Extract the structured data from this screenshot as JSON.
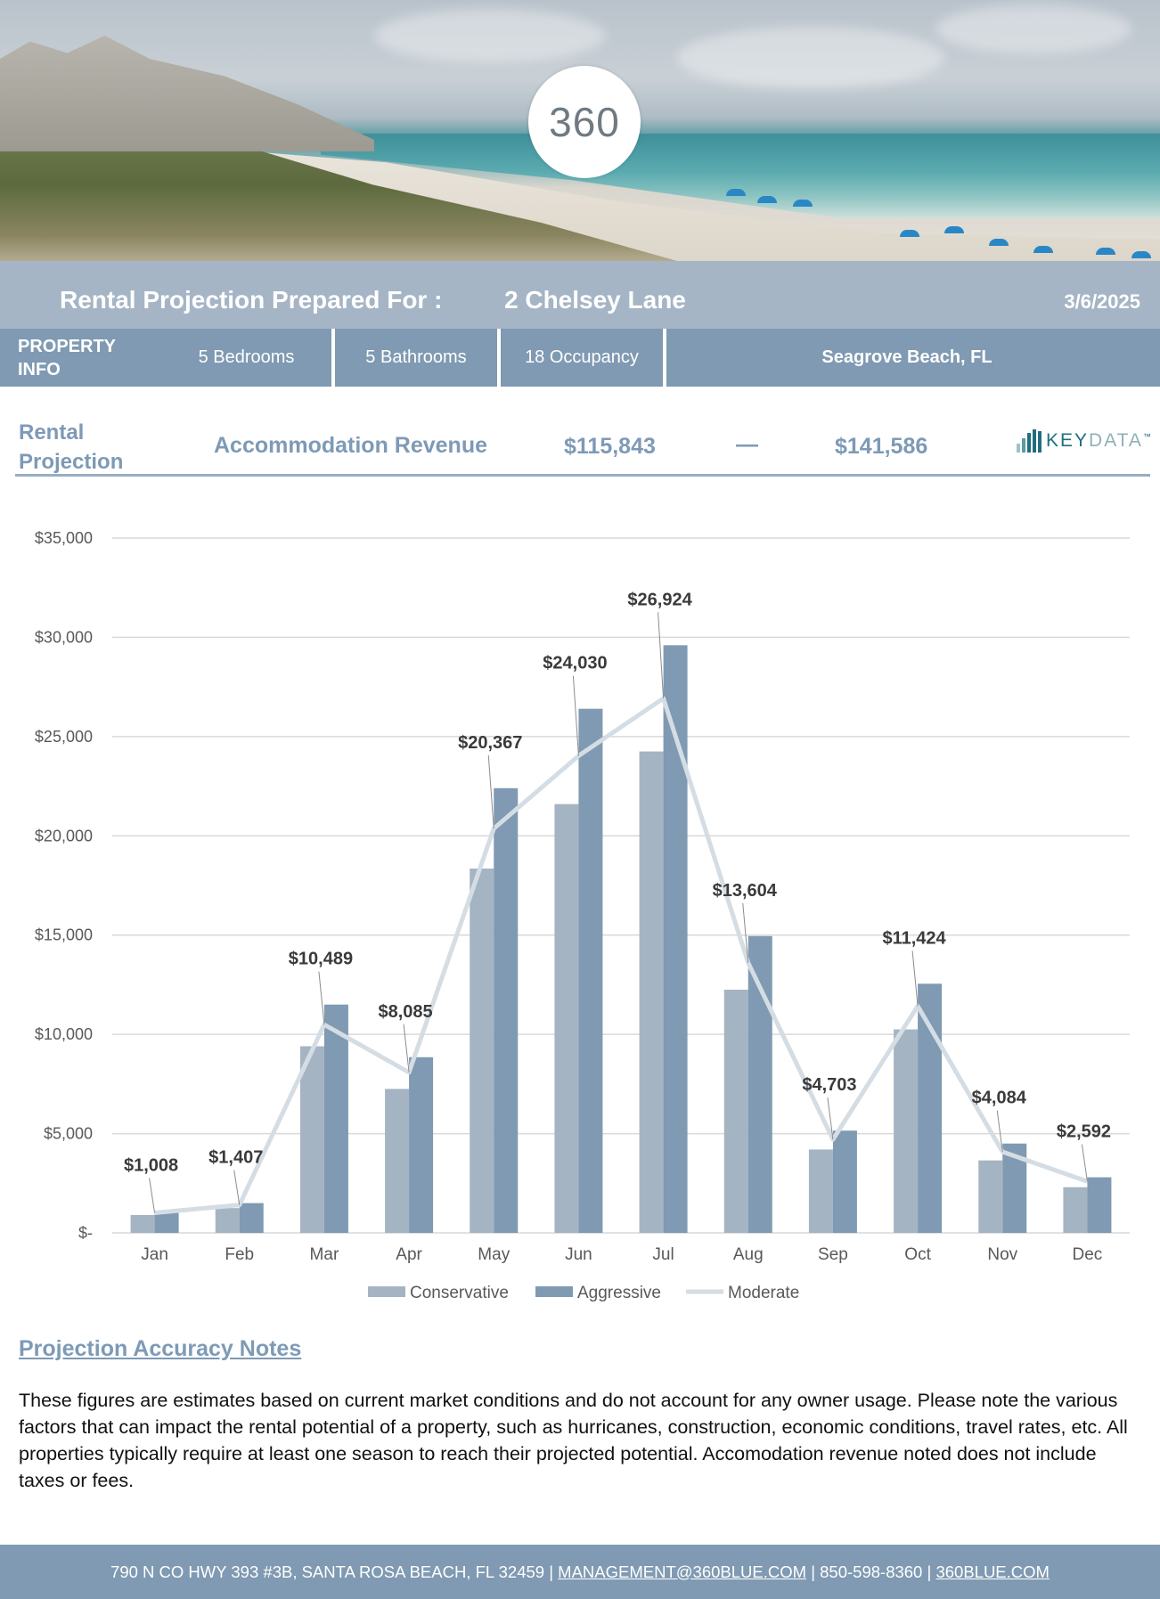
{
  "hero": {
    "logo_text": "360"
  },
  "header": {
    "title_prefix": "Rental Projection Prepared For :",
    "property_name": "2 Chelsey Lane",
    "date": "3/6/2025"
  },
  "property_info": {
    "label": "PROPERTY INFO",
    "bedrooms": "5 Bedrooms",
    "bathrooms": "5 Bathrooms",
    "occupancy": "18 Occupancy",
    "location": "Seagrove Beach, FL"
  },
  "projection": {
    "label": "Rental Projection",
    "revenue_label": "Accommodation Revenue",
    "low": "$115,843",
    "separator": "—",
    "high": "$141,586",
    "partner_logo": "KEYDATA",
    "partner_logo_parts": [
      "KEY",
      "DATA"
    ],
    "partner_tm": "™"
  },
  "chart_data": {
    "type": "bar",
    "title": "",
    "xlabel": "",
    "ylabel": "",
    "ylim": [
      0,
      35000
    ],
    "y_ticks": [
      0,
      5000,
      10000,
      15000,
      20000,
      25000,
      30000,
      35000
    ],
    "y_tick_labels": [
      "$-",
      "$5,000",
      "$10,000",
      "$15,000",
      "$20,000",
      "$25,000",
      "$30,000",
      "$35,000"
    ],
    "categories": [
      "Jan",
      "Feb",
      "Mar",
      "Apr",
      "May",
      "Jun",
      "Jul",
      "Aug",
      "Sep",
      "Oct",
      "Nov",
      "Dec"
    ],
    "series": [
      {
        "name": "Conservative",
        "kind": "bar",
        "color": "#a5b4c3",
        "values": [
          900,
          1250,
          9400,
          7250,
          18350,
          21600,
          24250,
          12250,
          4200,
          10250,
          3650,
          2300
        ]
      },
      {
        "name": "Aggressive",
        "kind": "bar",
        "color": "#7f9ab2",
        "values": [
          1100,
          1500,
          11500,
          8850,
          22400,
          26400,
          29600,
          14950,
          5150,
          12550,
          4500,
          2800
        ]
      },
      {
        "name": "Moderate",
        "kind": "line",
        "color": "#d5dde4",
        "values": [
          1008,
          1407,
          10489,
          8085,
          20367,
          24030,
          26924,
          13604,
          4703,
          11424,
          4084,
          2592
        ]
      }
    ],
    "data_labels": [
      "$1,008",
      "$1,407",
      "$10,489",
      "$8,085",
      "$20,367",
      "$24,030",
      "$26,924",
      "$13,604",
      "$4,703",
      "$11,424",
      "$4,084",
      "$2,592"
    ],
    "legend": "bottom-center",
    "grid": true
  },
  "notes": {
    "heading": "Projection Accuracy Notes",
    "body": "These figures are estimates based on current market conditions and do not account for any owner usage. Please note the various factors that can impact the rental potential of a property, such as hurricanes, construction, economic conditions, travel rates, etc. All properties typically require at least one season to reach their projected potential. Accomodation revenue noted does not include taxes or fees."
  },
  "footer": {
    "address": "790 N CO HWY 393 #3B, SANTA ROSA BEACH, FL 32459",
    "divider": "|",
    "email": "MANAGEMENT@360BLUE.COM",
    "phone": "850-598-8360",
    "website": "360BLUE.COM"
  }
}
